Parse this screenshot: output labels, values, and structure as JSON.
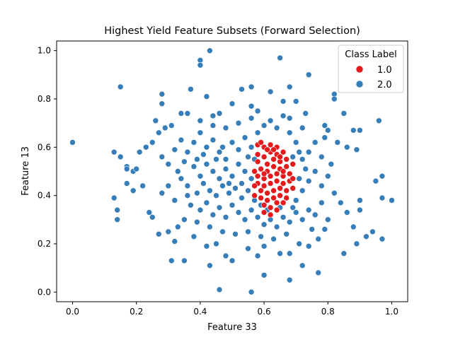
{
  "chart_data": {
    "type": "scatter",
    "title": "Highest Yield Feature Subsets (Forward Selection)",
    "xlabel": "Feature 33",
    "ylabel": "Feature 13",
    "xlim": [
      -0.05,
      1.05
    ],
    "ylim": [
      -0.04,
      1.04
    ],
    "xticks": [
      "0.0",
      "0.2",
      "0.4",
      "0.6",
      "0.8",
      "1.0"
    ],
    "yticks": [
      "0.0",
      "0.2",
      "0.4",
      "0.6",
      "0.8",
      "1.0"
    ],
    "grid": false,
    "legend": {
      "title": "Class Label",
      "placement": "top-right",
      "entries": [
        {
          "label": "1.0",
          "color": "#e41a1c"
        },
        {
          "label": "2.0",
          "color": "#377eb8"
        }
      ]
    },
    "series": [
      {
        "name": "2.0",
        "color": "#377eb8",
        "points": [
          [
            0.0,
            0.62
          ],
          [
            0.43,
            1.0
          ],
          [
            0.4,
            0.96
          ],
          [
            0.4,
            0.94
          ],
          [
            0.65,
            0.97
          ],
          [
            0.15,
            0.85
          ],
          [
            0.37,
            0.84
          ],
          [
            0.42,
            0.81
          ],
          [
            0.53,
            0.84
          ],
          [
            0.56,
            0.85
          ],
          [
            0.68,
            0.85
          ],
          [
            0.74,
            0.9
          ],
          [
            0.28,
            0.82
          ],
          [
            0.28,
            0.78
          ],
          [
            0.82,
            0.82
          ],
          [
            0.82,
            0.8
          ],
          [
            0.62,
            0.83
          ],
          [
            0.96,
            0.71
          ],
          [
            0.26,
            0.71
          ],
          [
            0.34,
            0.74
          ],
          [
            0.36,
            0.74
          ],
          [
            0.85,
            0.74
          ],
          [
            0.13,
            0.39
          ],
          [
            0.14,
            0.34
          ],
          [
            0.14,
            0.3
          ],
          [
            0.13,
            0.58
          ],
          [
            0.15,
            0.56
          ],
          [
            0.17,
            0.52
          ],
          [
            0.17,
            0.51
          ],
          [
            0.19,
            0.5
          ],
          [
            0.2,
            0.51
          ],
          [
            0.17,
            0.45
          ],
          [
            0.19,
            0.42
          ],
          [
            0.22,
            0.44
          ],
          [
            0.21,
            0.58
          ],
          [
            0.23,
            0.6
          ],
          [
            0.24,
            0.33
          ],
          [
            0.25,
            0.31
          ],
          [
            0.27,
            0.24
          ],
          [
            0.3,
            0.25
          ],
          [
            0.31,
            0.13
          ],
          [
            0.32,
            0.21
          ],
          [
            0.35,
            0.13
          ],
          [
            0.43,
            0.11
          ],
          [
            0.46,
            0.01
          ],
          [
            0.56,
            0.0
          ],
          [
            0.6,
            0.07
          ],
          [
            0.68,
            0.05
          ],
          [
            0.72,
            0.11
          ],
          [
            0.77,
            0.08
          ],
          [
            0.85,
            0.16
          ],
          [
            0.89,
            0.2
          ],
          [
            0.92,
            0.23
          ],
          [
            0.94,
            0.25
          ],
          [
            0.97,
            0.22
          ],
          [
            1.0,
            0.38
          ],
          [
            0.97,
            0.39
          ],
          [
            0.95,
            0.46
          ],
          [
            0.97,
            0.48
          ],
          [
            0.9,
            0.34
          ],
          [
            0.9,
            0.38
          ],
          [
            0.88,
            0.27
          ],
          [
            0.86,
            0.33
          ],
          [
            0.82,
            0.41
          ],
          [
            0.84,
            0.37
          ],
          [
            0.9,
            0.67
          ],
          [
            0.88,
            0.67
          ],
          [
            0.83,
            0.62
          ],
          [
            0.86,
            0.6
          ],
          [
            0.89,
            0.59
          ],
          [
            0.79,
            0.69
          ],
          [
            0.8,
            0.67
          ],
          [
            0.66,
            0.79
          ],
          [
            0.7,
            0.79
          ],
          [
            0.73,
            0.74
          ],
          [
            0.68,
            0.72
          ],
          [
            0.58,
            0.75
          ],
          [
            0.56,
            0.77
          ],
          [
            0.5,
            0.78
          ],
          [
            0.46,
            0.74
          ],
          [
            0.44,
            0.73
          ],
          [
            0.31,
            0.69
          ],
          [
            0.29,
            0.68
          ],
          [
            0.27,
            0.66
          ],
          [
            0.25,
            0.62
          ],
          [
            0.28,
            0.56
          ],
          [
            0.3,
            0.53
          ],
          [
            0.33,
            0.5
          ],
          [
            0.3,
            0.44
          ],
          [
            0.28,
            0.41
          ],
          [
            0.32,
            0.38
          ],
          [
            0.35,
            0.3
          ],
          [
            0.33,
            0.27
          ],
          [
            0.38,
            0.23
          ],
          [
            0.42,
            0.19
          ],
          [
            0.45,
            0.2
          ],
          [
            0.48,
            0.15
          ],
          [
            0.5,
            0.13
          ],
          [
            0.55,
            0.18
          ],
          [
            0.58,
            0.15
          ],
          [
            0.6,
            0.19
          ],
          [
            0.65,
            0.16
          ],
          [
            0.68,
            0.16
          ],
          [
            0.71,
            0.2
          ],
          [
            0.74,
            0.19
          ],
          [
            0.77,
            0.22
          ],
          [
            0.79,
            0.26
          ],
          [
            0.8,
            0.3
          ],
          [
            0.36,
            0.58
          ],
          [
            0.38,
            0.62
          ],
          [
            0.4,
            0.66
          ],
          [
            0.42,
            0.6
          ],
          [
            0.44,
            0.63
          ],
          [
            0.46,
            0.58
          ],
          [
            0.48,
            0.55
          ],
          [
            0.5,
            0.62
          ],
          [
            0.52,
            0.59
          ],
          [
            0.54,
            0.64
          ],
          [
            0.56,
            0.6
          ],
          [
            0.58,
            0.66
          ],
          [
            0.38,
            0.52
          ],
          [
            0.4,
            0.48
          ],
          [
            0.42,
            0.53
          ],
          [
            0.44,
            0.5
          ],
          [
            0.46,
            0.47
          ],
          [
            0.48,
            0.51
          ],
          [
            0.5,
            0.48
          ],
          [
            0.52,
            0.53
          ],
          [
            0.54,
            0.5
          ],
          [
            0.56,
            0.47
          ],
          [
            0.36,
            0.44
          ],
          [
            0.39,
            0.41
          ],
          [
            0.41,
            0.45
          ],
          [
            0.43,
            0.42
          ],
          [
            0.45,
            0.4
          ],
          [
            0.47,
            0.44
          ],
          [
            0.49,
            0.41
          ],
          [
            0.51,
            0.43
          ],
          [
            0.53,
            0.39
          ],
          [
            0.55,
            0.42
          ],
          [
            0.37,
            0.36
          ],
          [
            0.4,
            0.34
          ],
          [
            0.42,
            0.37
          ],
          [
            0.44,
            0.32
          ],
          [
            0.46,
            0.35
          ],
          [
            0.48,
            0.31
          ],
          [
            0.5,
            0.36
          ],
          [
            0.52,
            0.33
          ],
          [
            0.54,
            0.3
          ],
          [
            0.56,
            0.34
          ],
          [
            0.58,
            0.31
          ],
          [
            0.6,
            0.28
          ],
          [
            0.62,
            0.3
          ],
          [
            0.64,
            0.27
          ],
          [
            0.66,
            0.31
          ],
          [
            0.68,
            0.29
          ],
          [
            0.7,
            0.33
          ],
          [
            0.72,
            0.3
          ],
          [
            0.74,
            0.34
          ],
          [
            0.76,
            0.32
          ],
          [
            0.7,
            0.38
          ],
          [
            0.72,
            0.42
          ],
          [
            0.74,
            0.46
          ],
          [
            0.76,
            0.5
          ],
          [
            0.78,
            0.44
          ],
          [
            0.8,
            0.48
          ],
          [
            0.72,
            0.55
          ],
          [
            0.74,
            0.58
          ],
          [
            0.76,
            0.62
          ],
          [
            0.78,
            0.56
          ],
          [
            0.7,
            0.62
          ],
          [
            0.68,
            0.66
          ],
          [
            0.72,
            0.68
          ],
          [
            0.64,
            0.68
          ],
          [
            0.62,
            0.71
          ],
          [
            0.6,
            0.69
          ],
          [
            0.52,
            0.7
          ],
          [
            0.48,
            0.68
          ],
          [
            0.44,
            0.69
          ],
          [
            0.4,
            0.71
          ],
          [
            0.34,
            0.63
          ],
          [
            0.32,
            0.59
          ],
          [
            0.35,
            0.54
          ],
          [
            0.34,
            0.47
          ],
          [
            0.36,
            0.4
          ],
          [
            0.39,
            0.29
          ],
          [
            0.43,
            0.27
          ],
          [
            0.47,
            0.25
          ],
          [
            0.51,
            0.24
          ],
          [
            0.55,
            0.25
          ],
          [
            0.59,
            0.23
          ],
          [
            0.63,
            0.22
          ],
          [
            0.67,
            0.24
          ],
          [
            0.75,
            0.26
          ],
          [
            0.78,
            0.37
          ],
          [
            0.81,
            0.53
          ],
          [
            0.79,
            0.64
          ],
          [
            0.66,
            0.73
          ],
          [
            0.56,
            0.72
          ],
          [
            0.45,
            0.55
          ],
          [
            0.47,
            0.6
          ],
          [
            0.49,
            0.45
          ],
          [
            0.53,
            0.45
          ],
          [
            0.57,
            0.38
          ],
          [
            0.59,
            0.36
          ],
          [
            0.61,
            0.34
          ],
          [
            0.65,
            0.35
          ],
          [
            0.69,
            0.35
          ],
          [
            0.71,
            0.47
          ],
          [
            0.73,
            0.51
          ],
          [
            0.71,
            0.58
          ],
          [
            0.69,
            0.56
          ],
          [
            0.57,
            0.55
          ],
          [
            0.55,
            0.56
          ],
          [
            0.41,
            0.57
          ],
          [
            0.39,
            0.55
          ]
        ]
      },
      {
        "name": "1.0",
        "color": "#e41a1c",
        "points": [
          [
            0.58,
            0.61
          ],
          [
            0.6,
            0.6
          ],
          [
            0.62,
            0.61
          ],
          [
            0.64,
            0.6
          ],
          [
            0.58,
            0.57
          ],
          [
            0.6,
            0.56
          ],
          [
            0.62,
            0.58
          ],
          [
            0.64,
            0.57
          ],
          [
            0.66,
            0.58
          ],
          [
            0.58,
            0.54
          ],
          [
            0.61,
            0.53
          ],
          [
            0.63,
            0.55
          ],
          [
            0.65,
            0.54
          ],
          [
            0.67,
            0.55
          ],
          [
            0.59,
            0.51
          ],
          [
            0.61,
            0.5
          ],
          [
            0.63,
            0.52
          ],
          [
            0.65,
            0.51
          ],
          [
            0.67,
            0.52
          ],
          [
            0.69,
            0.53
          ],
          [
            0.58,
            0.48
          ],
          [
            0.6,
            0.47
          ],
          [
            0.62,
            0.48
          ],
          [
            0.64,
            0.49
          ],
          [
            0.66,
            0.48
          ],
          [
            0.68,
            0.49
          ],
          [
            0.58,
            0.45
          ],
          [
            0.6,
            0.44
          ],
          [
            0.62,
            0.45
          ],
          [
            0.64,
            0.46
          ],
          [
            0.66,
            0.45
          ],
          [
            0.68,
            0.46
          ],
          [
            0.59,
            0.42
          ],
          [
            0.61,
            0.41
          ],
          [
            0.63,
            0.42
          ],
          [
            0.65,
            0.43
          ],
          [
            0.67,
            0.42
          ],
          [
            0.59,
            0.39
          ],
          [
            0.61,
            0.38
          ],
          [
            0.63,
            0.39
          ],
          [
            0.65,
            0.4
          ],
          [
            0.6,
            0.36
          ],
          [
            0.62,
            0.35
          ],
          [
            0.64,
            0.37
          ],
          [
            0.66,
            0.37
          ],
          [
            0.6,
            0.33
          ],
          [
            0.62,
            0.32
          ],
          [
            0.64,
            0.34
          ],
          [
            0.57,
            0.5
          ],
          [
            0.57,
            0.44
          ],
          [
            0.57,
            0.4
          ],
          [
            0.69,
            0.47
          ],
          [
            0.69,
            0.43
          ],
          [
            0.67,
            0.39
          ],
          [
            0.61,
            0.59
          ],
          [
            0.63,
            0.59
          ],
          [
            0.59,
            0.62
          ],
          [
            0.65,
            0.56
          ],
          [
            0.6,
            0.49
          ],
          [
            0.66,
            0.5
          ]
        ]
      }
    ]
  }
}
